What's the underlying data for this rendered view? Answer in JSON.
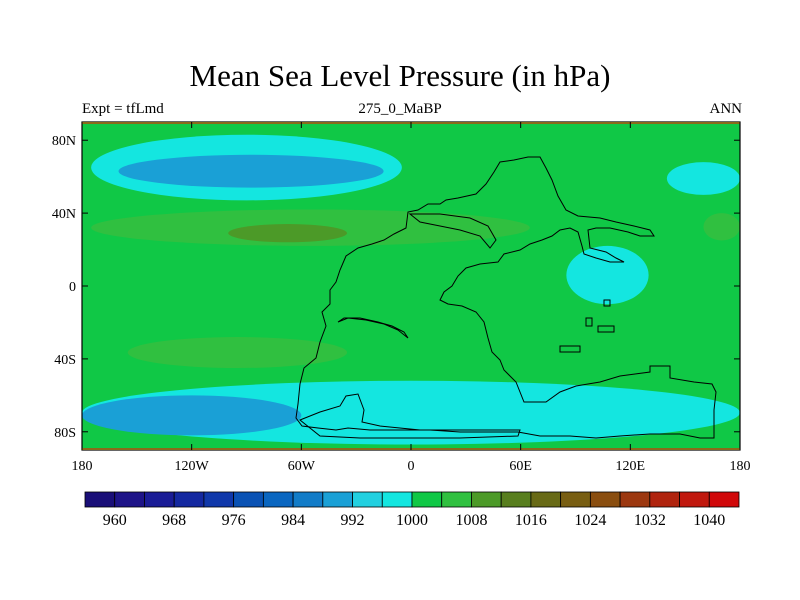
{
  "title": "Mean Sea Level Pressure (in hPa)",
  "left_label": "Expt = tfLmd",
  "center_label": "275_0_MaBP",
  "right_label": "ANN",
  "chart_data": {
    "type": "filled_contour_map",
    "variable": "Mean Sea Level Pressure",
    "units": "hPa",
    "x_range": [
      -180,
      180
    ],
    "y_range": [
      -90,
      90
    ],
    "x_ticks": [
      {
        "value": -180,
        "label": "180"
      },
      {
        "value": -120,
        "label": "120W"
      },
      {
        "value": -60,
        "label": "60W"
      },
      {
        "value": 0,
        "label": "0"
      },
      {
        "value": 60,
        "label": "60E"
      },
      {
        "value": 120,
        "label": "120E"
      },
      {
        "value": 180,
        "label": "180"
      }
    ],
    "y_ticks": [
      {
        "value": 80,
        "label": "80N"
      },
      {
        "value": 40,
        "label": "40N"
      },
      {
        "value": 0,
        "label": "0"
      },
      {
        "value": -40,
        "label": "40S"
      },
      {
        "value": -80,
        "label": "80S"
      }
    ],
    "colorbar": {
      "levels": [
        956,
        960,
        964,
        968,
        972,
        976,
        980,
        984,
        988,
        992,
        996,
        1000,
        1004,
        1008,
        1012,
        1016,
        1020,
        1024,
        1028,
        1032,
        1036,
        1040
      ],
      "colors": [
        "#1a0f78",
        "#1e1488",
        "#1a1c96",
        "#1428a0",
        "#1038aa",
        "#0a52b4",
        "#0a66c0",
        "#127cc8",
        "#1aa0d6",
        "#22d0e0",
        "#14e6e0",
        "#10c846",
        "#30c040",
        "#4c9a28",
        "#587e1e",
        "#686a16",
        "#785e12",
        "#8a4e10",
        "#9c3810",
        "#b0240e",
        "#c0180e",
        "#d0080a"
      ],
      "labels": [
        {
          "value": 960,
          "label": "960"
        },
        {
          "value": 968,
          "label": "968"
        },
        {
          "value": 976,
          "label": "976"
        },
        {
          "value": 984,
          "label": "984"
        },
        {
          "value": 992,
          "label": "992"
        },
        {
          "value": 1000,
          "label": "1000"
        },
        {
          "value": 1008,
          "label": "1008"
        },
        {
          "value": 1016,
          "label": "1016"
        },
        {
          "value": 1024,
          "label": "1024"
        },
        {
          "value": 1032,
          "label": "1032"
        },
        {
          "value": 1040,
          "label": "1040"
        }
      ]
    },
    "features": [
      {
        "name": "background",
        "level": 1000
      },
      {
        "name": "northern-low-pacific",
        "level": 996,
        "lon": [
          -175,
          -5
        ],
        "lat": [
          47,
          83
        ]
      },
      {
        "name": "northern-low-core",
        "level": 988,
        "lon": [
          -160,
          -15
        ],
        "lat": [
          54,
          72
        ]
      },
      {
        "name": "northern-low-east",
        "level": 996,
        "lon": [
          140,
          180
        ],
        "lat": [
          50,
          68
        ]
      },
      {
        "name": "subtropical-high-north",
        "level": 1004,
        "lon": [
          -175,
          65
        ],
        "lat": [
          22,
          42
        ]
      },
      {
        "name": "subtropical-high-north-core",
        "level": 1008,
        "lon": [
          -100,
          -35
        ],
        "lat": [
          24,
          34
        ]
      },
      {
        "name": "subtropical-high-east",
        "level": 1004,
        "lon": [
          160,
          180
        ],
        "lat": [
          25,
          40
        ]
      },
      {
        "name": "subtropical-high-south",
        "level": 1004,
        "lon": [
          -155,
          -35
        ],
        "lat": [
          -45,
          -28
        ]
      },
      {
        "name": "southern-low-belt",
        "level": 996,
        "lon": [
          -180,
          180
        ],
        "lat": [
          -87,
          -52
        ]
      },
      {
        "name": "southern-low-core",
        "level": 988,
        "lon": [
          -180,
          -60
        ],
        "lat": [
          -82,
          -60
        ]
      },
      {
        "name": "monsoon-low",
        "level": 996,
        "lon": [
          85,
          130
        ],
        "lat": [
          -10,
          22
        ]
      }
    ]
  }
}
